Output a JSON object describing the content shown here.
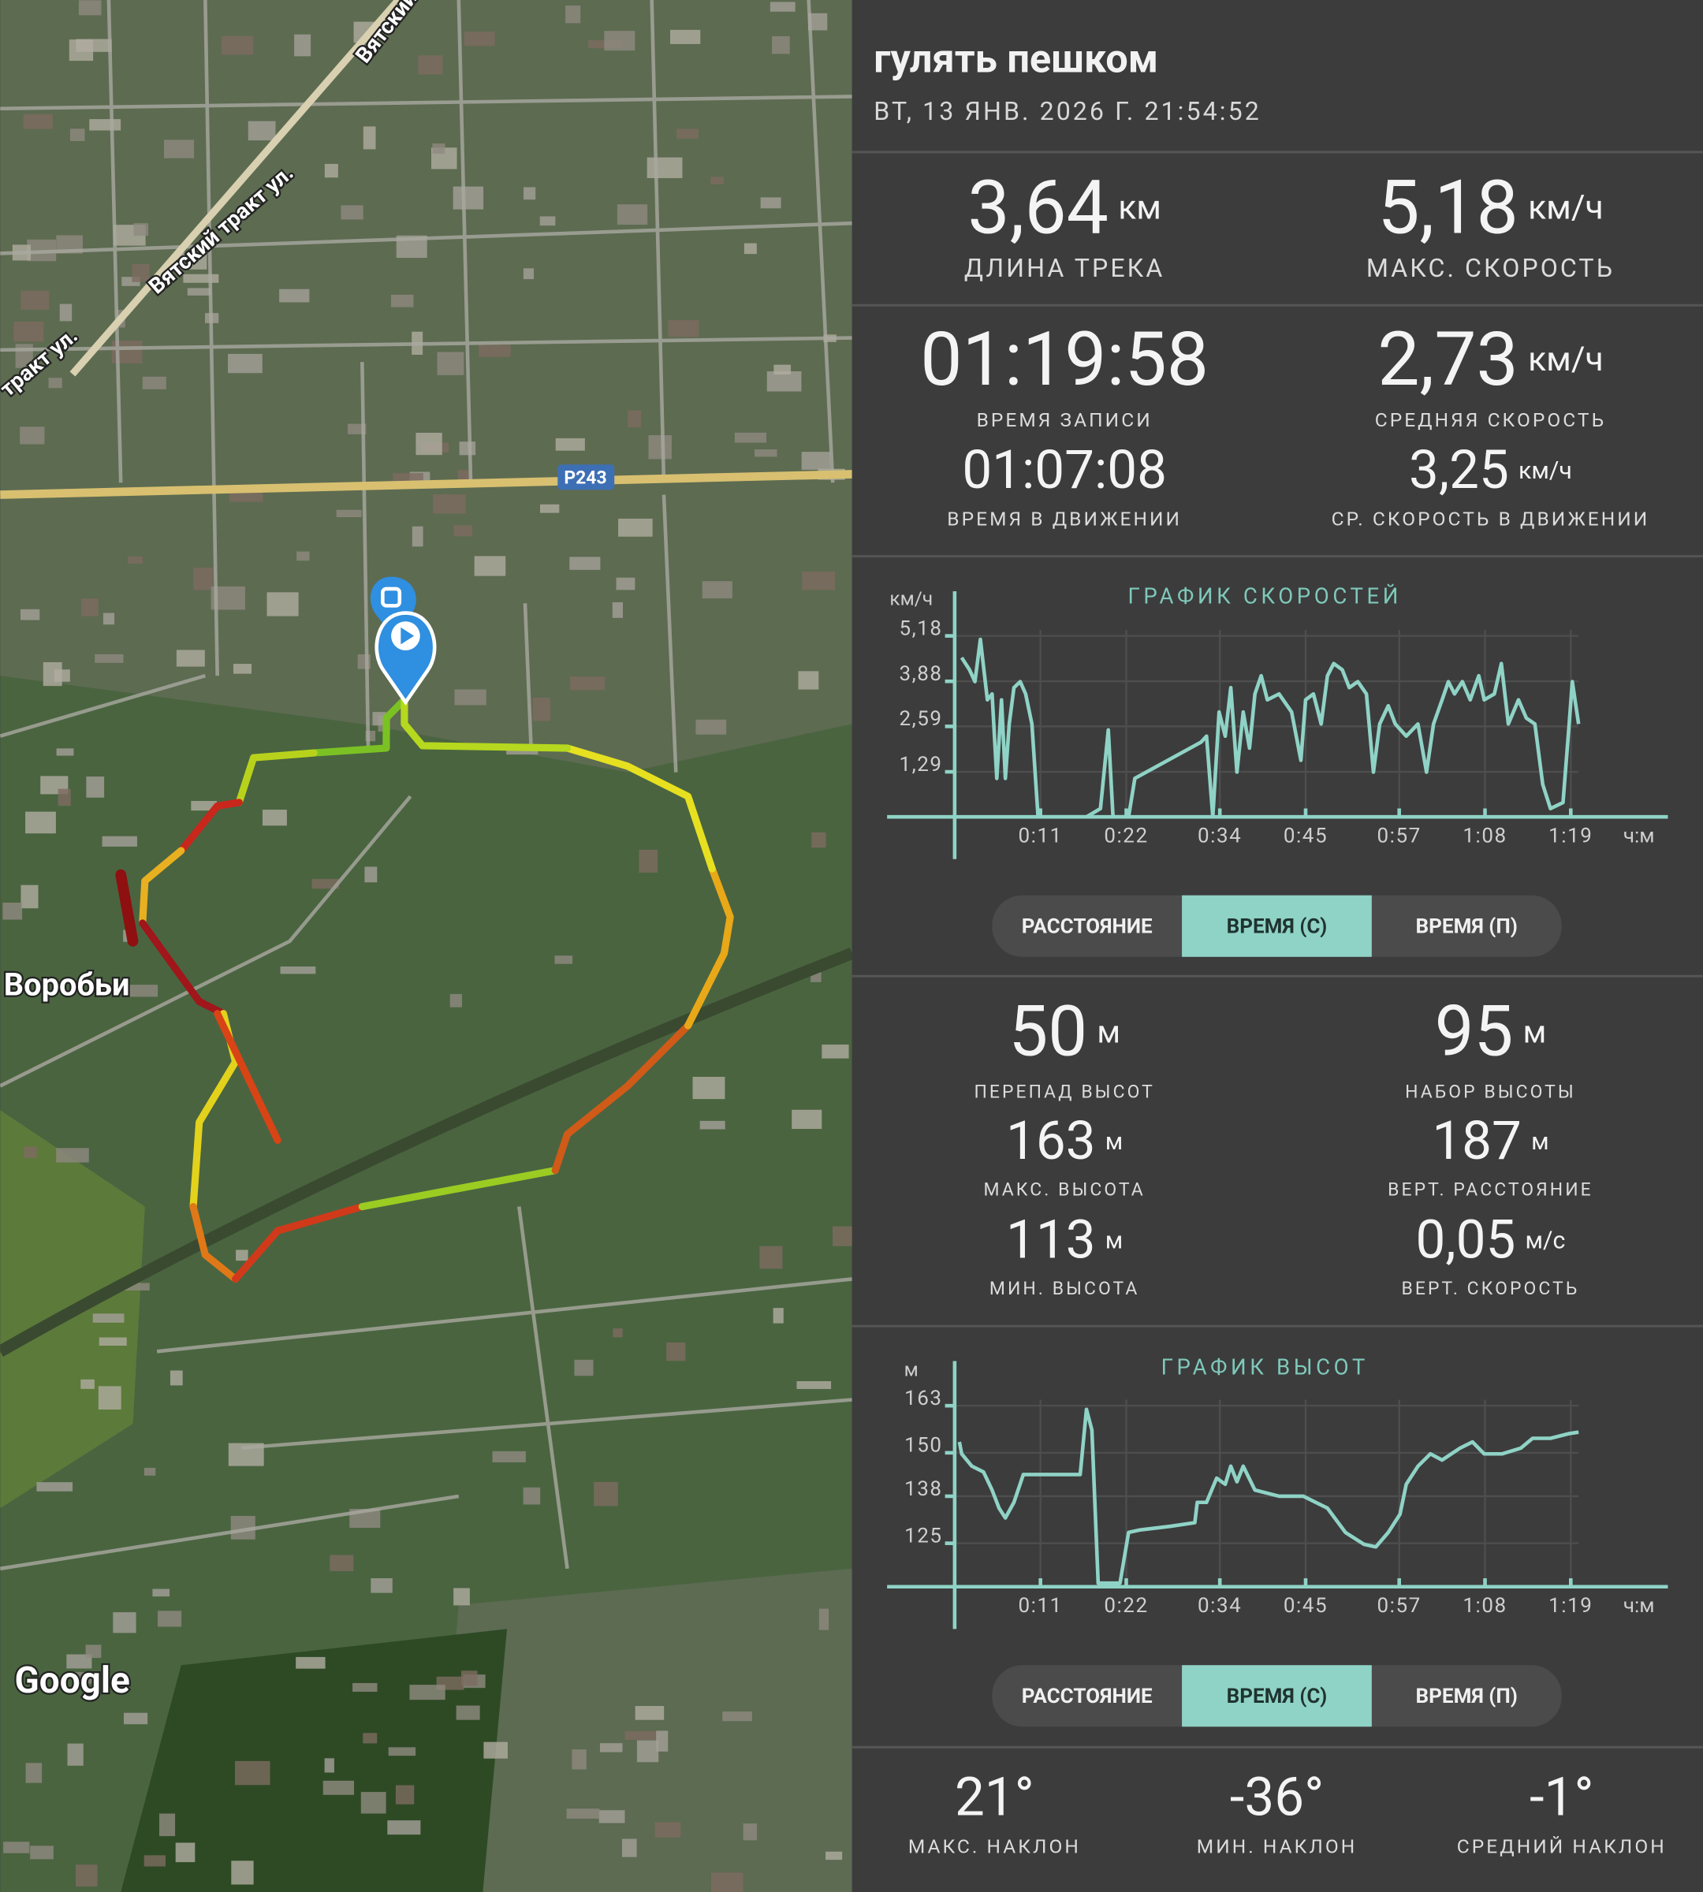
{
  "map": {
    "labels": [
      "Вятский тракт ул.",
      "тракт ул.",
      "Вятский",
      "Р243",
      "Воробьи",
      "Google"
    ]
  },
  "header": {
    "title": "гулять пешком",
    "date": "ВТ, 13 ЯНВ. 2026 Г. 21:54:52"
  },
  "speed_stats": [
    {
      "value": "3,64",
      "unit": "км",
      "label": "ДЛИНА ТРЕКА"
    },
    {
      "value": "5,18",
      "unit": "км/ч",
      "label": "МАКС. СКОРОСТЬ"
    },
    {
      "value": "01:19:58",
      "label": "ВРЕМЯ ЗАПИСИ"
    },
    {
      "value": "2,73",
      "unit": "км/ч",
      "label": "СРЕДНЯЯ СКОРОСТЬ"
    },
    {
      "value": "01:07:08",
      "label": "ВРЕМЯ В ДВИЖЕНИИ"
    },
    {
      "value": "3,25",
      "unit": "км/ч",
      "label": "СР. СКОРОСТЬ В ДВИЖЕНИИ"
    }
  ],
  "elevation_stats": [
    {
      "value": "50",
      "unit": "м",
      "label": "ПЕРЕПАД ВЫСОТ"
    },
    {
      "value": "95",
      "unit": "м",
      "label": "НАБОР ВЫСОТЫ"
    },
    {
      "value": "163",
      "unit": "м",
      "label": "МАКС. ВЫСОТА"
    },
    {
      "value": "187",
      "unit": "м",
      "label": "ВЕРТ. РАССТОЯНИЕ"
    },
    {
      "value": "113",
      "unit": "м",
      "label": "МИН. ВЫСОТА"
    },
    {
      "value": "0,05",
      "unit": "м/с",
      "label": "ВЕРТ. СКОРОСТЬ"
    }
  ],
  "slope_stats": [
    {
      "value": "21°",
      "label": "МАКС. НАКЛОН"
    },
    {
      "value": "-36°",
      "label": "МИН. НАКЛОН"
    },
    {
      "value": "-1°",
      "label": "СРЕДНИЙ НАКЛОН"
    }
  ],
  "speed_tabs": {
    "options": [
      "РАССТОЯНИЕ",
      "ВРЕМЯ (С)",
      "ВРЕМЯ (П)"
    ],
    "selected": 1
  },
  "elevation_tabs": {
    "options": [
      "РАССТОЯНИЕ",
      "ВРЕМЯ (С)",
      "ВРЕМЯ (П)"
    ],
    "selected": 1
  },
  "chart_data": [
    {
      "type": "line",
      "title": "ГРАФИК СКОРОСТЕЙ",
      "y_label": "км/ч",
      "x_label": "ч:м",
      "color": "#8fd3c6",
      "grid": true,
      "x": [
        0.9,
        1.9,
        2.6,
        3.3,
        4.2,
        4.8,
        5.4,
        6.0,
        6.5,
        7.0,
        7.6,
        8.4,
        9.1,
        9.9,
        10.7,
        16.9,
        18.7,
        19.7,
        20.3,
        22.3,
        23.1,
        31.6,
        32.3,
        33.1,
        33.9,
        34.7,
        35.4,
        36.2,
        37.0,
        37.8,
        38.5,
        39.3,
        40.1,
        41.6,
        43.2,
        44.4,
        45.0,
        46.0,
        47.0,
        47.8,
        48.6,
        49.7,
        50.6,
        51.7,
        52.8,
        53.7,
        54.5,
        55.6,
        56.5,
        57.9,
        59.4,
        60.5,
        61.4,
        62.5,
        63.3,
        64.1,
        65.1,
        66.1,
        67.2,
        67.9,
        69.2,
        70.1,
        71.0,
        72.3,
        73.3,
        74.4,
        75.4,
        76.4,
        78.0,
        78.8,
        79.2,
        80.0
      ],
      "values": [
        4.56,
        4.21,
        3.87,
        5.08,
        3.35,
        3.52,
        1.1,
        3.35,
        1.1,
        2.66,
        3.7,
        3.87,
        3.52,
        2.66,
        0,
        0,
        0.24,
        2.49,
        0,
        0,
        1.1,
        2.14,
        2.31,
        0,
        3.0,
        2.31,
        3.7,
        1.28,
        3.0,
        1.97,
        3.52,
        4.04,
        3.35,
        3.52,
        3.0,
        1.62,
        3.35,
        3.52,
        2.66,
        4.04,
        4.39,
        4.21,
        3.7,
        3.87,
        3.52,
        1.28,
        2.66,
        3.18,
        2.66,
        2.31,
        2.66,
        1.28,
        2.66,
        3.35,
        3.87,
        3.52,
        3.87,
        3.35,
        4.04,
        3.35,
        3.52,
        4.39,
        2.66,
        3.35,
        2.83,
        2.66,
        0.93,
        0.24,
        0.41,
        2.66,
        3.87,
        2.66
      ],
      "xlim": [
        0,
        80
      ],
      "ylim": [
        0,
        5.18
      ],
      "xticks": [
        {
          "value": 11,
          "label": "0:11"
        },
        {
          "value": 22,
          "label": "0:22"
        },
        {
          "value": 34,
          "label": "0:34"
        },
        {
          "value": 45,
          "label": "0:45"
        },
        {
          "value": 57,
          "label": "0:57"
        },
        {
          "value": 68,
          "label": "1:08"
        },
        {
          "value": 79,
          "label": "1:19"
        }
      ],
      "yticks": [
        {
          "value": 1.29,
          "label": "1,29"
        },
        {
          "value": 2.59,
          "label": "2,59"
        },
        {
          "value": 3.88,
          "label": "3,88"
        },
        {
          "value": 5.18,
          "label": "5,18"
        }
      ]
    },
    {
      "type": "line",
      "title": "ГРАФИК ВЫСОТ",
      "y_label": "м",
      "x_label": "ч:м",
      "color": "#8fd3c6",
      "grid": true,
      "x": [
        0.6,
        0.9,
        2.2,
        3.7,
        4.8,
        5.7,
        6.5,
        7.6,
        8.8,
        10.7,
        13.8,
        16.1,
        16.9,
        17.6,
        18.4,
        21.2,
        22.3,
        23.8,
        27.7,
        30.8,
        31.1,
        32.3,
        33.6,
        34.7,
        35.4,
        36.2,
        37.0,
        38.5,
        41.6,
        44.7,
        47.8,
        50.1,
        52.5,
        54.0,
        55.6,
        57.1,
        57.9,
        59.4,
        61.0,
        62.5,
        64.8,
        66.4,
        67.9,
        70.2,
        72.6,
        74.1,
        76.4,
        78.8,
        80.0
      ],
      "values": [
        153,
        149.7,
        146.3,
        144.7,
        139.7,
        134.7,
        132,
        136.3,
        144,
        144,
        144,
        144,
        162,
        156.3,
        114,
        114,
        128,
        128.7,
        129.7,
        130.7,
        136.3,
        136.3,
        143,
        141.3,
        146.3,
        142,
        146.3,
        139.7,
        138,
        138,
        134.7,
        128,
        124.7,
        124,
        128,
        133,
        141.3,
        146.3,
        149.7,
        148,
        151.3,
        153,
        149.7,
        149.7,
        151.3,
        154,
        154,
        155.3,
        155.7
      ],
      "xlim": [
        0,
        80
      ],
      "ylim": [
        113,
        163
      ],
      "xticks": [
        {
          "value": 11,
          "label": "0:11"
        },
        {
          "value": 22,
          "label": "0:22"
        },
        {
          "value": 34,
          "label": "0:34"
        },
        {
          "value": 45,
          "label": "0:45"
        },
        {
          "value": 57,
          "label": "0:57"
        },
        {
          "value": 68,
          "label": "1:08"
        },
        {
          "value": 79,
          "label": "1:19"
        }
      ],
      "yticks": [
        125,
        138,
        150,
        163
      ]
    }
  ]
}
